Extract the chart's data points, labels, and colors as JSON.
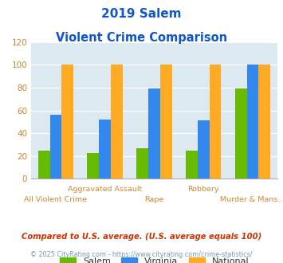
{
  "title_line1": "2019 Salem",
  "title_line2": "Violent Crime Comparison",
  "categories": [
    "All Violent Crime",
    "Aggravated Assault",
    "Rape",
    "Robbery",
    "Murder & Mans..."
  ],
  "salem": [
    25,
    23,
    27,
    25,
    79
  ],
  "virginia": [
    56,
    52,
    79,
    51,
    100
  ],
  "national": [
    100,
    100,
    100,
    100,
    100
  ],
  "color_salem": "#66bb00",
  "color_virginia": "#3388ee",
  "color_national": "#ffaa22",
  "ylim": [
    0,
    120
  ],
  "yticks": [
    0,
    20,
    40,
    60,
    80,
    100,
    120
  ],
  "footnote1": "Compared to U.S. average. (U.S. average equals 100)",
  "footnote2": "© 2025 CityRating.com - https://www.cityrating.com/crime-statistics/",
  "bg_color": "#dce9f0",
  "title_color": "#1155cc",
  "tick_label_color": "#cc8833",
  "footnote1_color": "#cc3300",
  "footnote2_color": "#7799aa"
}
